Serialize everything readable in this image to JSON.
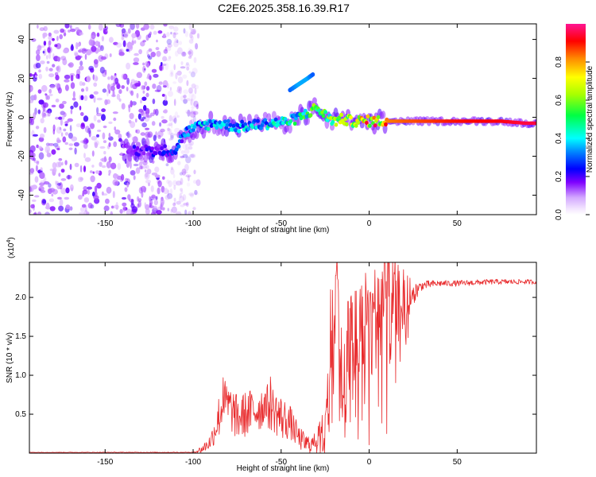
{
  "title": "C2E6.2025.358.16.39.R17",
  "colors": {
    "spectral_low": "#7f00ff",
    "spectral_band": "#0033ff",
    "snr_line": "#e8282a"
  },
  "chart_data": [
    {
      "type": "heatmap",
      "name": "spectrogram",
      "xlabel": "Height of straight line (km)",
      "ylabel": "Frequency (Hz)",
      "xlim": [
        -193,
        95
      ],
      "ylim": [
        -50,
        48
      ],
      "x_ticks": [
        -150,
        -100,
        -50,
        0,
        50
      ],
      "x_tick_labels": [
        "-150",
        "-100",
        "-50",
        "0",
        "50"
      ],
      "y_ticks": [
        -40,
        -20,
        0,
        20,
        40
      ],
      "y_tick_labels": [
        "-40",
        "-20",
        "0",
        "20",
        "40"
      ],
      "noise_region_x": [
        -193,
        -105
      ],
      "band": {
        "x": [
          -140,
          -125,
          -110,
          -105,
          -95,
          -85,
          -75,
          -65,
          -55,
          -45,
          -35,
          -30,
          -25,
          -20,
          -15,
          -10,
          0,
          20,
          50,
          75,
          88,
          95
        ],
        "freq": [
          -17,
          -17,
          -17,
          -8,
          -4,
          -3,
          -5,
          -4,
          -3,
          -2,
          2,
          5,
          1,
          -2,
          -1,
          -2,
          -2,
          -2,
          -2,
          -2,
          -3,
          -3
        ],
        "amplitude": [
          0.18,
          0.2,
          0.25,
          0.3,
          0.4,
          0.35,
          0.35,
          0.4,
          0.42,
          0.45,
          0.5,
          0.55,
          0.55,
          0.6,
          0.65,
          0.7,
          0.8,
          0.85,
          0.9,
          0.92,
          0.95,
          0.95
        ]
      },
      "echo": {
        "x": [
          -45,
          -40,
          -35,
          -32
        ],
        "freq": [
          14,
          17,
          20,
          22
        ],
        "amplitude": [
          0.3,
          0.35,
          0.35,
          0.3
        ]
      }
    },
    {
      "type": "colorbar",
      "name": "amplitude-scale",
      "label": "Normalized spectral amplitude",
      "range": [
        0,
        1
      ],
      "ticks": [
        0.0,
        0.2,
        0.4,
        0.6,
        0.8
      ],
      "tick_labels": [
        "0.0",
        "0.2",
        "0.4",
        "0.6",
        "0.8"
      ]
    },
    {
      "type": "line",
      "name": "snr",
      "xlabel": "Height of straight line (km)",
      "ylabel": "SNR (10 * v/v)",
      "y_multiplier": "(x10",
      "y_multiplier_exp": "4",
      "y_multiplier_close": ")",
      "xlim": [
        -193,
        95
      ],
      "ylim": [
        0,
        2.45
      ],
      "x_ticks": [
        -150,
        -100,
        -50,
        0,
        50
      ],
      "x_tick_labels": [
        "-150",
        "-100",
        "-50",
        "0",
        "50"
      ],
      "y_ticks": [
        0.5,
        1.0,
        1.5,
        2.0
      ],
      "y_tick_labels": [
        "0.5",
        "1.0",
        "1.5",
        "2.0"
      ],
      "envelope": {
        "x": [
          -193,
          -100,
          -95,
          -90,
          -87,
          -85,
          -82,
          -78,
          -75,
          -70,
          -65,
          -60,
          -55,
          -50,
          -45,
          -40,
          -36,
          -32,
          -28,
          -25,
          -22,
          -20,
          -18,
          -16,
          -14,
          -12,
          -10,
          -7,
          -4,
          -1,
          2,
          5,
          7,
          9,
          11,
          13,
          15,
          17,
          20,
          25,
          30,
          35,
          40,
          50,
          60,
          70,
          80,
          88,
          95
        ],
        "y": [
          0.01,
          0.01,
          0.05,
          0.15,
          0.35,
          0.5,
          0.65,
          0.55,
          0.45,
          0.5,
          0.55,
          0.6,
          0.58,
          0.45,
          0.4,
          0.2,
          0.12,
          0.12,
          0.25,
          0.5,
          1.4,
          2.0,
          2.1,
          1.0,
          0.8,
          1.5,
          1.4,
          1.6,
          1.7,
          1.8,
          1.5,
          2.0,
          2.0,
          2.25,
          2.0,
          1.9,
          2.0,
          1.9,
          2.0,
          2.05,
          2.15,
          2.17,
          2.18,
          2.18,
          2.19,
          2.2,
          2.2,
          2.2,
          2.2
        ]
      },
      "noise_amplitude": {
        "x": [
          -193,
          -100,
          -90,
          -85,
          -75,
          -50,
          -40,
          -30,
          -25,
          -20,
          -10,
          10,
          20,
          25,
          30,
          40,
          95
        ],
        "y": [
          0.003,
          0.005,
          0.1,
          0.3,
          0.3,
          0.3,
          0.15,
          0.1,
          0.3,
          0.7,
          0.8,
          0.7,
          0.4,
          0.15,
          0.06,
          0.04,
          0.03
        ]
      },
      "peaks": {
        "x": [
          -83,
          -59,
          -56,
          -22,
          -19,
          -14,
          -12,
          -8,
          2,
          5,
          9,
          10
        ],
        "y": [
          0.97,
          0.76,
          0.98,
          2.1,
          2.28,
          1.4,
          1.95,
          2.08,
          2.05,
          2.25,
          2.45,
          0.25
        ]
      }
    }
  ]
}
